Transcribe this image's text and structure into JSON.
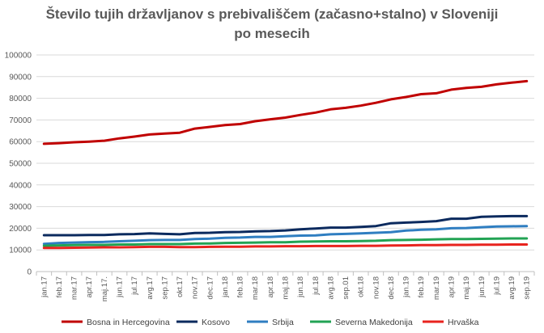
{
  "chart_data": {
    "type": "line",
    "title_line1": "Število tujih državljanov s prebivališčem (začasno+stalno) v Sloveniji",
    "title_line2": "po mesecih",
    "xlabel": "",
    "ylabel": "",
    "ylim": [
      0,
      100000
    ],
    "yticks": [
      "0",
      "10000",
      "20000",
      "30000",
      "40000",
      "50000",
      "60000",
      "70000",
      "80000",
      "90000",
      "100000"
    ],
    "grid": true,
    "legend_position": "bottom",
    "categories": [
      "jan.17",
      "feb.17",
      "mar.17",
      "apr.17",
      "maj.17.",
      "jun.17",
      "jul.17",
      "avg.17",
      "sep.17",
      "okt.17",
      "nov.17",
      "dec.17",
      "jan.18",
      "feb.18",
      "mar.18",
      "apr.18",
      "maj.18",
      "jun.18",
      "jul.18",
      "avg.18",
      "sep.01",
      "okt.18",
      "nov.18",
      "dec.18",
      "jan.19",
      "feb.19",
      "mar.19",
      "apr.19",
      "maj.19",
      "jun.19",
      "jul.19",
      "avg.19",
      "sep.19"
    ],
    "series": [
      {
        "name": "Bosna in Hercegovina",
        "color": "#C00000",
        "values": [
          59000,
          59300,
          59700,
          60000,
          60400,
          61500,
          62300,
          63300,
          63700,
          64100,
          66000,
          66800,
          67600,
          68100,
          69400,
          70300,
          71100,
          72300,
          73400,
          74900,
          75600,
          76600,
          77900,
          79500,
          80600,
          81900,
          82300,
          84000,
          84800,
          85300,
          86400,
          87200,
          87900
        ]
      },
      {
        "name": "Kosovo",
        "color": "#0B2A5E",
        "values": [
          16800,
          16800,
          16800,
          16900,
          16900,
          17200,
          17300,
          17600,
          17400,
          17200,
          17800,
          17900,
          18200,
          18300,
          18600,
          18700,
          19000,
          19500,
          19900,
          20300,
          20300,
          20600,
          21000,
          22300,
          22600,
          22900,
          23300,
          24400,
          24400,
          25300,
          25500,
          25600,
          25600
        ]
      },
      {
        "name": "Srbija",
        "color": "#2F7EC1",
        "values": [
          12800,
          13200,
          13400,
          13600,
          13700,
          14000,
          14200,
          14500,
          14600,
          14600,
          15000,
          15200,
          15600,
          15700,
          16000,
          16000,
          16300,
          16600,
          16700,
          17200,
          17400,
          17600,
          17900,
          18200,
          18900,
          19300,
          19500,
          20000,
          20100,
          20500,
          20800,
          20900,
          21000
        ]
      },
      {
        "name": "Severna Makedonija",
        "color": "#22A354",
        "values": [
          11900,
          12100,
          12200,
          12300,
          12300,
          12500,
          12500,
          12700,
          12700,
          12700,
          12900,
          13000,
          13200,
          13300,
          13400,
          13500,
          13500,
          13800,
          13900,
          14000,
          14000,
          14100,
          14200,
          14500,
          14600,
          14700,
          14900,
          15000,
          15000,
          15100,
          15200,
          15300,
          15300
        ]
      },
      {
        "name": "Hrvaška",
        "color": "#E8231E",
        "values": [
          10900,
          10900,
          11000,
          11100,
          11200,
          11200,
          11300,
          11400,
          11400,
          11300,
          11300,
          11400,
          11500,
          11500,
          11600,
          11600,
          11700,
          11700,
          11800,
          11800,
          11800,
          11900,
          11900,
          12000,
          12100,
          12200,
          12200,
          12300,
          12300,
          12400,
          12400,
          12500,
          12500
        ]
      }
    ]
  }
}
